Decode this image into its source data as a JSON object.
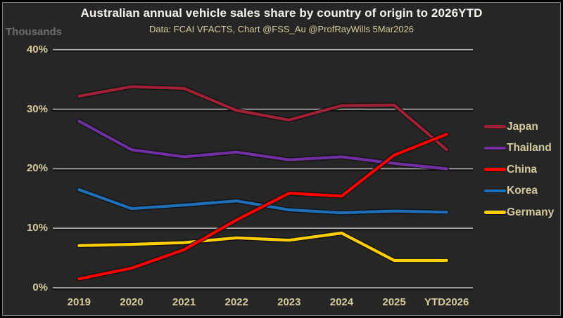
{
  "colors": {
    "background": "#262626",
    "title_text": "#F4F2EA",
    "subtitle_text": "#D5CB9C",
    "tick_text": "#D5CB9C",
    "note_text": "#6E6E6E",
    "gridline": "#A8A8A8"
  },
  "chart_data": {
    "type": "line",
    "title": "Australian annual vehicle sales share by country of origin to 2026YTD",
    "subtitle": "Data: FCAI VFACTS, Chart @FSS_Au @ProfRayWills 5Mar2026",
    "y_axis_note": "Thousands",
    "categories": [
      "2019",
      "2020",
      "2021",
      "2022",
      "2023",
      "2024",
      "2025",
      "YTD2026"
    ],
    "y_ticks": [
      {
        "label": "40%",
        "value": 40
      },
      {
        "label": "30%",
        "value": 30
      },
      {
        "label": "20%",
        "value": 20
      },
      {
        "label": "10%",
        "value": 10
      },
      {
        "label": "0%",
        "value": 0
      }
    ],
    "ylim": [
      0,
      40
    ],
    "grid": true,
    "legend_position": "right",
    "series": [
      {
        "name": "Japan",
        "color": "#9E2135",
        "values": [
          32.2,
          33.8,
          33.5,
          29.8,
          28.2,
          30.6,
          30.7,
          23.2
        ]
      },
      {
        "name": "Thailand",
        "color": "#7030A0",
        "values": [
          28.0,
          23.2,
          22.0,
          22.8,
          21.5,
          22.0,
          20.9,
          20.0
        ]
      },
      {
        "name": "China",
        "color": "#FE0000",
        "values": [
          1.5,
          3.3,
          6.4,
          11.4,
          15.9,
          15.4,
          22.3,
          25.8
        ]
      },
      {
        "name": "Korea",
        "color": "#1E6FB8",
        "values": [
          16.5,
          13.3,
          13.9,
          14.6,
          13.1,
          12.6,
          12.9,
          12.7
        ]
      },
      {
        "name": "Germany",
        "color": "#FFCF01",
        "values": [
          7.1,
          7.3,
          7.6,
          8.4,
          8.0,
          9.2,
          4.6,
          4.6
        ]
      }
    ],
    "draw_order": [
      "Japan",
      "Thailand",
      "Korea",
      "Germany",
      "China"
    ]
  }
}
